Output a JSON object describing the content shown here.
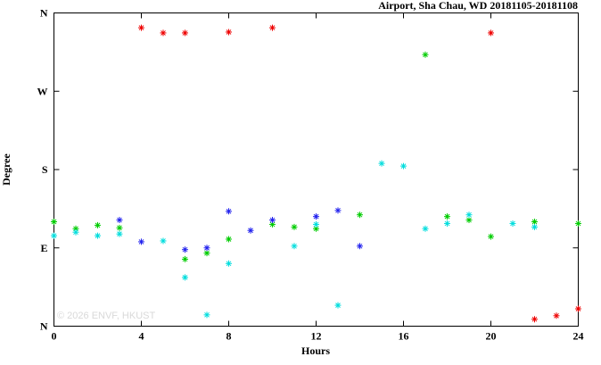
{
  "title": "Airport, Sha Chau, WD 20181105-20181108",
  "watermark": "© 2026 ENVF, HKUST",
  "chart_data": {
    "type": "scatter",
    "title": "Airport, Sha Chau, WD 20181105-20181108",
    "xlabel": "Hours",
    "ylabel": "Degree",
    "xlim": [
      0,
      24
    ],
    "ylim": [
      0,
      360
    ],
    "x_ticks": [
      0,
      4,
      8,
      12,
      16,
      20,
      24
    ],
    "y_ticks": [
      {
        "value": 0,
        "label": "N"
      },
      {
        "value": 90,
        "label": "E"
      },
      {
        "value": 180,
        "label": "S"
      },
      {
        "value": 270,
        "label": "W"
      },
      {
        "value": 360,
        "label": "N"
      }
    ],
    "grid": false,
    "legend": "none",
    "marker": "asterisk",
    "series": [
      {
        "name": "red",
        "color": "#ee0000",
        "points": [
          [
            4,
            343
          ],
          [
            5,
            337
          ],
          [
            6,
            337
          ],
          [
            8,
            338
          ],
          [
            10,
            343
          ],
          [
            20,
            337
          ],
          [
            22,
            8
          ],
          [
            23,
            12
          ],
          [
            24,
            20
          ]
        ]
      },
      {
        "name": "green",
        "color": "#00cc00",
        "points": [
          [
            0,
            120
          ],
          [
            1,
            112
          ],
          [
            2,
            116
          ],
          [
            3,
            113
          ],
          [
            6,
            77
          ],
          [
            7,
            84
          ],
          [
            8,
            100
          ],
          [
            10,
            117
          ],
          [
            11,
            114
          ],
          [
            12,
            112
          ],
          [
            14,
            128
          ],
          [
            17,
            312
          ],
          [
            18,
            126
          ],
          [
            19,
            122
          ],
          [
            20,
            103
          ],
          [
            22,
            120
          ],
          [
            24,
            118
          ]
        ]
      },
      {
        "name": "blue",
        "color": "#2222ee",
        "points": [
          [
            3,
            122
          ],
          [
            4,
            97
          ],
          [
            6,
            88
          ],
          [
            7,
            90
          ],
          [
            8,
            132
          ],
          [
            9,
            110
          ],
          [
            10,
            122
          ],
          [
            12,
            126
          ],
          [
            13,
            133
          ],
          [
            14,
            92
          ]
        ]
      },
      {
        "name": "cyan",
        "color": "#00dddd",
        "points": [
          [
            0,
            104
          ],
          [
            1,
            108
          ],
          [
            2,
            104
          ],
          [
            3,
            106
          ],
          [
            5,
            98
          ],
          [
            6,
            56
          ],
          [
            7,
            13
          ],
          [
            8,
            72
          ],
          [
            11,
            92
          ],
          [
            12,
            117
          ],
          [
            13,
            24
          ],
          [
            15,
            187
          ],
          [
            16,
            184
          ],
          [
            17,
            112
          ],
          [
            18,
            118
          ],
          [
            19,
            128
          ],
          [
            21,
            118
          ],
          [
            22,
            114
          ]
        ]
      }
    ]
  }
}
